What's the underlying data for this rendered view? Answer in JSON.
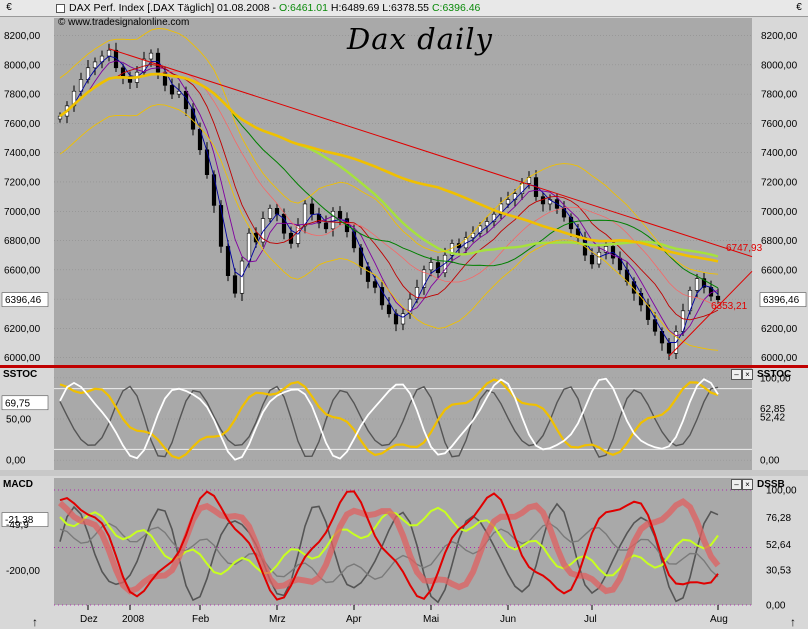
{
  "header": {
    "currency_left": "€",
    "currency_right": "€",
    "instrument": "DAX Perf. Index [.DAX  Täglich] 01.08.2008",
    "open": "O:6461.01",
    "high": "H:6489.69",
    "low": "L:6378.55",
    "close": "C:6396.46",
    "credit": "© www.tradesignalonline.com"
  },
  "annotation_title": "Dax daily",
  "colors": {
    "background": "#a9a9a9",
    "up_candle": "#000000",
    "trend_line": "#e00000",
    "ma_long": "#f0c000",
    "ma_mid": "#a6e23c",
    "stoch_fast": "#ffffff",
    "stoch_slow": "#f0c000"
  },
  "chart_data": [
    {
      "panel": "price",
      "type": "candlestick",
      "y_ticks": [
        "8200,00",
        "8000,00",
        "7800,00",
        "7600,00",
        "7400,00",
        "7200,00",
        "7000,00",
        "6800,00",
        "6600,00",
        "6400,00",
        "6200,00",
        "6000,00"
      ],
      "ylim": [
        5950,
        8320
      ],
      "last_price_label": "6396,46",
      "resistance_label": "6747,93",
      "support_label": "6353,21",
      "x_labels": [
        "Dez",
        "2008",
        "Feb",
        "Mrz",
        "Apr",
        "Mai",
        "Jun",
        "Jul",
        "Aug"
      ],
      "close_series": [
        7650,
        7720,
        7820,
        7900,
        7980,
        8020,
        8060,
        8100,
        7980,
        7920,
        7880,
        7950,
        8040,
        8080,
        7950,
        7860,
        7800,
        7820,
        7700,
        7560,
        7420,
        7250,
        7040,
        6760,
        6560,
        6440,
        6660,
        6850,
        6790,
        6950,
        7020,
        6980,
        6850,
        6780,
        6900,
        7050,
        6980,
        6920,
        6880,
        7000,
        6950,
        6860,
        6750,
        6620,
        6520,
        6480,
        6360,
        6300,
        6230,
        6300,
        6400,
        6480,
        6600,
        6650,
        6580,
        6700,
        6780,
        6750,
        6820,
        6850,
        6900,
        6930,
        6980,
        7050,
        7080,
        7120,
        7190,
        7230,
        7100,
        7050,
        7080,
        7020,
        6960,
        6880,
        6820,
        6700,
        6640,
        6720,
        6760,
        6680,
        6600,
        6520,
        6440,
        6360,
        6260,
        6180,
        6100,
        6030,
        6180,
        6320,
        6460,
        6540,
        6480,
        6420,
        6396
      ]
    },
    {
      "panel": "SSTOC",
      "type": "line",
      "title": "SSTOC",
      "y_ticks_left": [
        "69,75",
        "50,00",
        "0,00"
      ],
      "y_ticks_right": [
        "100,00",
        "62,85",
        "52,42",
        "0,00"
      ],
      "ylim": [
        -12,
        112
      ]
    },
    {
      "panel": "MACD",
      "type": "line",
      "title": "MACD",
      "right_title": "DSSB",
      "y_ticks_left": [
        "-21,38",
        "-49,9",
        "-200,00"
      ],
      "y_ticks_right": [
        "100,00",
        "76,28",
        "52,64",
        "30,53",
        "0,00"
      ]
    }
  ]
}
